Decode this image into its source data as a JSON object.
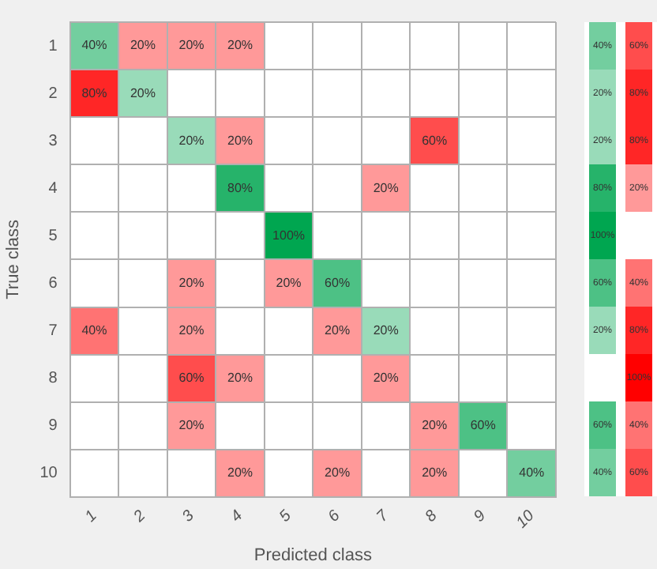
{
  "chart_data": [
    {
      "type": "heatmap",
      "xlabel": "Predicted class",
      "ylabel": "True class",
      "grid": true,
      "colors": [
        "#00a650",
        "#ff0000"
      ],
      "categories": [
        "1",
        "2",
        "3",
        "4",
        "5",
        "6",
        "7",
        "8",
        "9",
        "10"
      ],
      "y_categories": [
        "1",
        "2",
        "3",
        "4",
        "5",
        "6",
        "7",
        "8",
        "9",
        "10"
      ],
      "cells": [
        [
          40,
          20,
          20,
          20,
          null,
          null,
          null,
          null,
          null,
          null
        ],
        [
          80,
          20,
          null,
          null,
          null,
          null,
          null,
          null,
          null,
          null
        ],
        [
          null,
          null,
          20,
          20,
          null,
          null,
          null,
          60,
          null,
          null
        ],
        [
          null,
          null,
          null,
          80,
          null,
          null,
          20,
          null,
          null,
          null
        ],
        [
          null,
          null,
          null,
          null,
          100,
          null,
          null,
          null,
          null,
          null
        ],
        [
          null,
          null,
          20,
          null,
          20,
          60,
          null,
          null,
          null,
          null
        ],
        [
          40,
          null,
          20,
          null,
          null,
          20,
          20,
          null,
          null,
          null
        ],
        [
          null,
          null,
          60,
          20,
          null,
          null,
          20,
          null,
          null,
          null
        ],
        [
          null,
          null,
          20,
          null,
          null,
          null,
          null,
          20,
          60,
          null
        ],
        [
          null,
          null,
          null,
          20,
          null,
          20,
          null,
          20,
          null,
          40
        ]
      ],
      "cell_labels": [
        [
          "40%",
          "20%",
          "20%",
          "20%",
          null,
          null,
          null,
          null,
          null,
          null
        ],
        [
          "80%",
          "20%",
          null,
          null,
          null,
          null,
          null,
          null,
          null,
          null
        ],
        [
          null,
          null,
          "20%",
          "20%",
          null,
          null,
          null,
          "60%",
          null,
          null
        ],
        [
          null,
          null,
          null,
          "80%",
          null,
          null,
          "20%",
          null,
          null,
          null
        ],
        [
          null,
          null,
          null,
          null,
          "100%",
          null,
          null,
          null,
          null,
          null
        ],
        [
          null,
          null,
          "20%",
          null,
          "20%",
          "60%",
          null,
          null,
          null,
          null
        ],
        [
          "40%",
          null,
          "20%",
          null,
          null,
          "20%",
          "20%",
          null,
          null,
          null
        ],
        [
          null,
          null,
          "60%",
          "20%",
          null,
          null,
          "20%",
          null,
          null,
          null
        ],
        [
          null,
          null,
          "20%",
          null,
          null,
          null,
          null,
          "20%",
          "60%",
          null
        ],
        [
          null,
          null,
          null,
          "20%",
          null,
          "20%",
          null,
          "20%",
          null,
          "40%"
        ]
      ]
    },
    {
      "type": "heatmap",
      "tick_labels": false,
      "colors": [
        "#00a650",
        "#ff0000"
      ],
      "categories": [
        null,
        null
      ],
      "y_categories": [
        null,
        null,
        null,
        null,
        null,
        null,
        null,
        null,
        null,
        null
      ],
      "cells": [
        [
          40,
          60
        ],
        [
          20,
          80
        ],
        [
          20,
          80
        ],
        [
          80,
          20
        ],
        [
          100,
          null
        ],
        [
          60,
          40
        ],
        [
          20,
          80
        ],
        [
          null,
          100
        ],
        [
          60,
          40
        ],
        [
          40,
          60
        ]
      ],
      "cell_labels": [
        [
          "40%",
          "60%"
        ],
        [
          "20%",
          "80%"
        ],
        [
          "20%",
          "80%"
        ],
        [
          "80%",
          "20%"
        ],
        [
          "100%",
          null
        ],
        [
          "60%",
          "40%"
        ],
        [
          "20%",
          "80%"
        ],
        [
          null,
          "100%"
        ],
        [
          "60%",
          "40%"
        ],
        [
          "40%",
          "60%"
        ]
      ]
    }
  ]
}
